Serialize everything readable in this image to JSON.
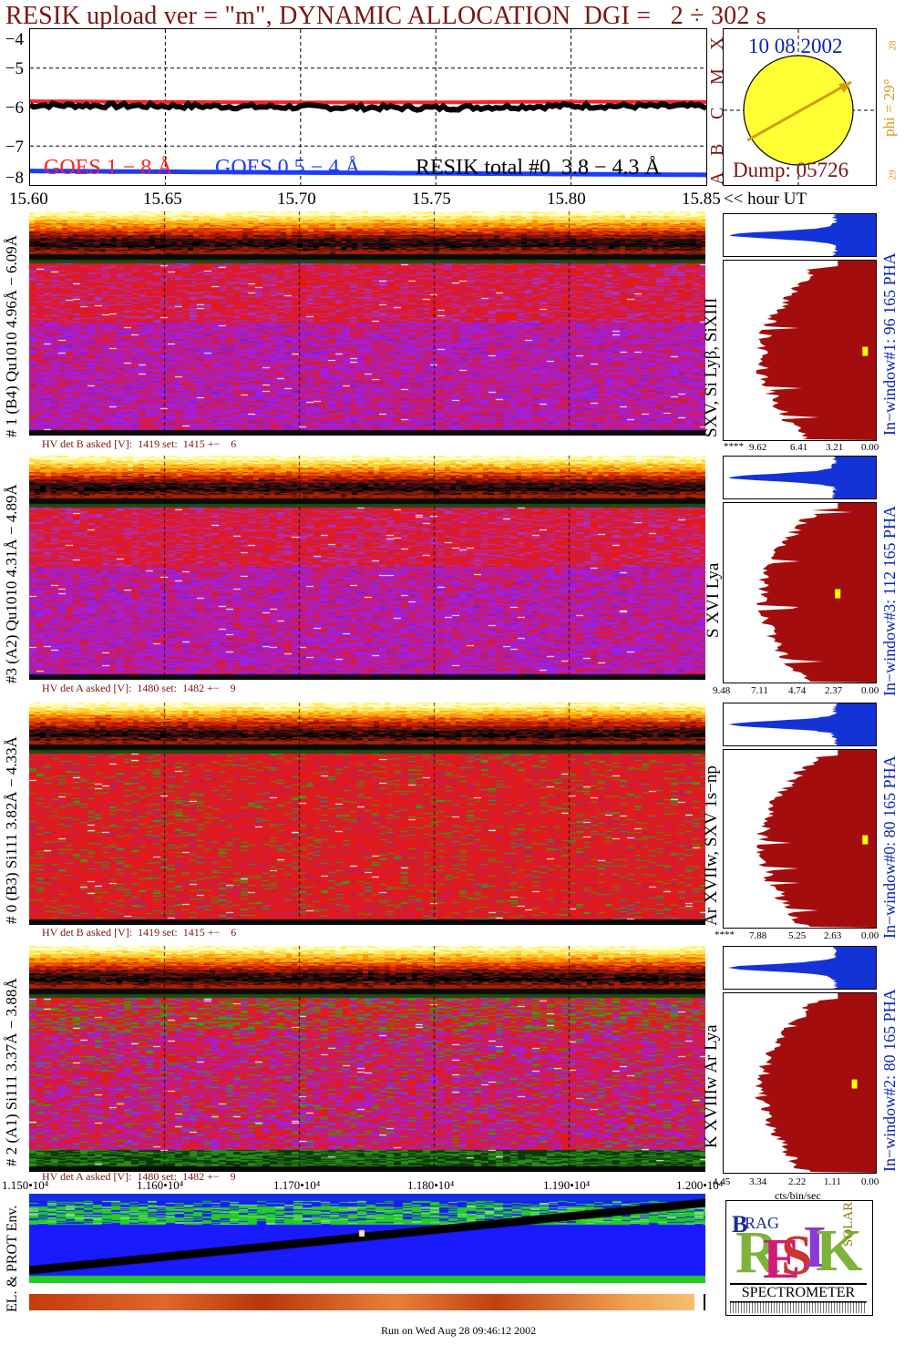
{
  "header": {
    "title": "RESIK upload ver = \"m\", DYNAMIC ALLOCATION  DGI =   2 ÷ 302 s"
  },
  "goes": {
    "y_ticks": [
      "−4",
      "−5",
      "−6",
      "−7",
      "−8"
    ],
    "class_letters": [
      "A",
      "B",
      "C",
      "M",
      "X"
    ],
    "legend_1": "GOES 1 − 8 Å",
    "legend_2": "GOES 0.5 − 4 Å",
    "legend_3": "RESIK total #0  3.8 − 4.3 Å",
    "x_ticks": [
      "15.60",
      "15.65",
      "15.70",
      "15.75",
      "15.80",
      "15.85"
    ],
    "x_unit": "<< hour UT",
    "colors": {
      "goes_long": "#ff2020",
      "goes_short": "#1a3cff",
      "resik": "#000000"
    }
  },
  "chart_data": [
    {
      "type": "line",
      "title": "",
      "xlabel": "hour UT",
      "ylabel": "",
      "x": [
        15.6,
        15.65,
        15.7,
        15.75,
        15.8,
        15.85
      ],
      "xlim": [
        15.6,
        15.85
      ],
      "ylim": [
        -8,
        -4
      ],
      "series": [
        {
          "name": "GOES 1 − 8 Å",
          "values": [
            -5.85,
            -5.87,
            -5.88,
            -5.88,
            -5.86,
            -5.87
          ]
        },
        {
          "name": "GOES 0.5 − 4 Å",
          "values": [
            -7.64,
            -7.66,
            -7.68,
            -7.7,
            -7.72,
            -7.74
          ]
        },
        {
          "name": "RESIK total #0  3.8 − 4.3 Å",
          "values": [
            -5.95,
            -5.97,
            -6.0,
            -6.02,
            -5.97,
            -5.98
          ]
        }
      ]
    }
  ],
  "sun": {
    "date": "10 08 2002",
    "dump": "Dump: 05726",
    "phi": "phi = 29°",
    "tick_top": "28",
    "tick_bottom": "29"
  },
  "panels": [
    {
      "label": "# 1 (B4) Qu1010 4.96Å − 6.09Å",
      "line_id": "SXV, Si Lyβ, SiXIII",
      "window": "In−window#1:   96 165  PHA",
      "hv": "HV det B asked [V]:  1419 set:  1415 +−    6",
      "hist_ticks": [
        "****",
        "9.62",
        "6.41",
        "3.21",
        "0.00"
      ]
    },
    {
      "label": "#3 (A2) Qu1010  4.31Å − 4.89Å",
      "line_id": "S XVI Lya",
      "window": "In−window#3:  112 165  PHA",
      "hv": "HV det A asked [V]:  1480 set:  1482 +−    9",
      "hist_ticks": [
        "9.48",
        "7.11",
        "4.74",
        "2.37",
        "0.00"
      ]
    },
    {
      "label": "# 0 (B3) Si111  3.82Å − 4.33Å",
      "line_id": "Ar XVIIw,  SXV 1s−np",
      "window": "In−window#0:   80 165  PHA",
      "hv": "HV det B asked [V]:  1419 set:  1415 +−    6",
      "hist_ticks": [
        "****",
        "7.88",
        "5.25",
        "2.63",
        "0.00"
      ]
    },
    {
      "label": "# 2 (A1) Si111  3.37Å − 3.88Å",
      "line_id": "K XVIIIw  Ar Lya",
      "window": "In−window#2:   80 165  PHA",
      "hv": "HV det A asked [V]:  1480 set:  1482 +−    9",
      "hist_ticks": [
        "4.45",
        "3.34",
        "2.22",
        "1.11",
        "0.00"
      ]
    }
  ],
  "bottom": {
    "x_ticks": [
      "1.150•10⁴",
      "1.160•10⁴",
      "1.170•10⁴",
      "1.180•10⁴",
      "1.190•10⁴",
      "1.200•10⁴"
    ],
    "hist_unit": "cts/bin/sec",
    "env_label": "EL. & PROT Env.",
    "footer": "Run on Wed Aug 28 09:46:12 2002"
  },
  "logo": {
    "letters": "RESIK",
    "sub1": "BRAG",
    "sub2": "SOLAR",
    "caption": "SPECTROMETER"
  }
}
